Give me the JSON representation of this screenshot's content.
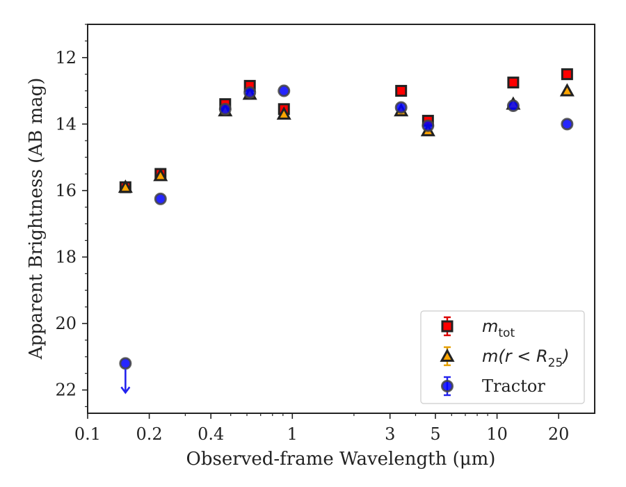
{
  "chart_data": {
    "type": "scatter",
    "xlabel": "Observed-frame Wavelength (μm)",
    "ylabel": "Apparent Brightness (AB mag)",
    "xscale": "log",
    "xlim": [
      0.1,
      30
    ],
    "ylim": [
      22.7,
      11.0
    ],
    "y_inverted": true,
    "x_ticks": [
      0.1,
      0.2,
      0.4,
      1,
      3,
      5,
      10,
      20
    ],
    "x_tick_labels": [
      "0.1",
      "0.2",
      "0.4",
      "1",
      "3",
      "5",
      "10",
      "20"
    ],
    "y_ticks": [
      12,
      14,
      16,
      18,
      20,
      22
    ],
    "y_tick_labels": [
      "12",
      "14",
      "16",
      "18",
      "20",
      "22"
    ],
    "grid": false,
    "legend_position": "bottom-right",
    "series": [
      {
        "name": "m_tot",
        "legend_label": {
          "main": "m",
          "sub": "tot"
        },
        "marker": "square",
        "color": "#ff0000",
        "edge_color": "#222222",
        "x": [
          0.153,
          0.227,
          0.47,
          0.62,
          0.91,
          3.4,
          4.6,
          12.0,
          22.0
        ],
        "y": [
          15.9,
          15.5,
          13.4,
          12.85,
          13.55,
          13.0,
          13.9,
          12.75,
          12.5
        ]
      },
      {
        "name": "m(r < R25)",
        "legend_label": {
          "main": "m(r < R",
          "sub": "25",
          "tail": ")"
        },
        "marker": "triangle",
        "color": "#ffa500",
        "edge_color": "#222222",
        "x": [
          0.153,
          0.227,
          0.47,
          0.62,
          0.91,
          3.4,
          4.6,
          12.0,
          22.0
        ],
        "y": [
          15.9,
          15.55,
          13.6,
          13.1,
          13.7,
          13.6,
          14.2,
          13.4,
          13.0
        ]
      },
      {
        "name": "Tractor",
        "legend_label": {
          "main": "Tractor"
        },
        "marker": "circle",
        "color": "#0000ff",
        "edge_color": "#444444",
        "x": [
          0.153,
          0.227,
          0.47,
          0.62,
          0.91,
          3.4,
          4.6,
          12.0,
          22.0
        ],
        "y": [
          21.2,
          16.25,
          13.55,
          13.05,
          13.0,
          13.5,
          14.05,
          13.45,
          14.0
        ],
        "upper_limit_index": 0
      }
    ]
  }
}
